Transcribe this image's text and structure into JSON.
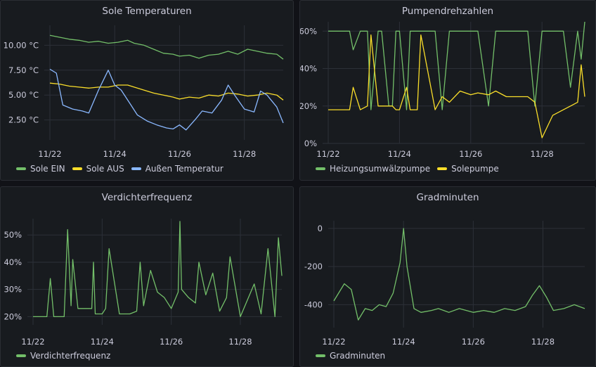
{
  "colors": {
    "green": "#73bf69",
    "yellow": "#fade2a",
    "blue": "#8ab8ff"
  },
  "chart_data": [
    {
      "type": "line",
      "title": "Sole Temperaturen",
      "x_ticks": [
        "11/22",
        "11/24",
        "11/26",
        "11/28"
      ],
      "y_ticks": [
        "10.00 °C",
        "7.50 °C",
        "5.00 °C",
        "2.50 °C"
      ],
      "ylim": [
        0.5,
        12
      ],
      "series": [
        {
          "name": "Sole EIN",
          "color": "#73bf69",
          "x": [
            0,
            0.3,
            0.6,
            0.9,
            1.2,
            1.5,
            1.8,
            2.1,
            2.4,
            2.6,
            2.9,
            3.2,
            3.5,
            3.8,
            4.0,
            4.3,
            4.6,
            4.9,
            5.2,
            5.5,
            5.8,
            6.1,
            6.4,
            6.7,
            7.0,
            7.2
          ],
          "y": [
            11.0,
            10.8,
            10.6,
            10.5,
            10.3,
            10.4,
            10.2,
            10.3,
            10.5,
            10.2,
            10.0,
            9.6,
            9.2,
            9.1,
            8.9,
            9.0,
            8.7,
            9.0,
            9.1,
            9.4,
            9.1,
            9.6,
            9.4,
            9.2,
            9.1,
            8.6
          ]
        },
        {
          "name": "Sole AUS",
          "color": "#fade2a",
          "x": [
            0,
            0.3,
            0.6,
            0.9,
            1.2,
            1.5,
            1.8,
            2.1,
            2.4,
            2.6,
            2.9,
            3.2,
            3.5,
            3.8,
            4.0,
            4.3,
            4.6,
            4.9,
            5.2,
            5.5,
            5.8,
            6.1,
            6.4,
            6.7,
            7.0,
            7.2
          ],
          "y": [
            6.2,
            6.1,
            5.9,
            5.8,
            5.7,
            5.8,
            5.8,
            6.0,
            6.0,
            5.8,
            5.5,
            5.2,
            5.0,
            4.8,
            4.6,
            4.8,
            4.7,
            5.0,
            4.9,
            5.2,
            5.1,
            4.9,
            5.0,
            5.2,
            5.0,
            4.5
          ]
        },
        {
          "name": "Außen Temperatur",
          "color": "#8ab8ff",
          "x": [
            0,
            0.2,
            0.4,
            0.7,
            1.0,
            1.2,
            1.5,
            1.8,
            2.0,
            2.2,
            2.5,
            2.7,
            3.0,
            3.3,
            3.6,
            3.8,
            4.0,
            4.2,
            4.5,
            4.7,
            5.0,
            5.3,
            5.5,
            5.7,
            6.0,
            6.3,
            6.5,
            6.7,
            7.0,
            7.2
          ],
          "y": [
            7.6,
            7.2,
            4.0,
            3.6,
            3.4,
            3.2,
            5.5,
            7.5,
            6.0,
            5.5,
            4.0,
            3.0,
            2.4,
            2.0,
            1.7,
            1.6,
            2.0,
            1.5,
            2.6,
            3.4,
            3.2,
            4.5,
            6.0,
            5.0,
            3.6,
            3.3,
            5.4,
            5.0,
            3.8,
            2.2
          ]
        }
      ],
      "legend_placement": "bottom-left"
    },
    {
      "type": "line",
      "title": "Pumpendrehzahlen",
      "x_ticks": [
        "11/22",
        "11/24",
        "11/26",
        "11/28"
      ],
      "y_ticks": [
        "60%",
        "40%",
        "20%",
        "0%"
      ],
      "ylim": [
        0,
        65
      ],
      "series": [
        {
          "name": "Heizungsumwälzpumpe",
          "color": "#73bf69",
          "x": [
            0,
            0.4,
            0.6,
            0.7,
            0.9,
            1.1,
            1.2,
            1.4,
            1.5,
            1.7,
            1.8,
            1.9,
            2.0,
            2.2,
            2.3,
            2.5,
            2.6,
            3.0,
            3.2,
            3.4,
            3.7,
            4.0,
            4.2,
            4.5,
            4.7,
            5.0,
            5.3,
            5.6,
            5.8,
            6.0,
            6.3,
            6.6,
            6.8,
            7.0,
            7.1,
            7.2
          ],
          "y": [
            60,
            60,
            60,
            50,
            60,
            60,
            18,
            60,
            60,
            20,
            20,
            60,
            60,
            18,
            60,
            60,
            60,
            60,
            18,
            60,
            60,
            60,
            60,
            20,
            60,
            60,
            60,
            60,
            20,
            60,
            60,
            60,
            30,
            60,
            45,
            65
          ]
        },
        {
          "name": "Solepumpe",
          "color": "#fade2a",
          "x": [
            0,
            0.4,
            0.6,
            0.7,
            0.9,
            1.1,
            1.2,
            1.4,
            1.5,
            1.7,
            1.8,
            1.9,
            2.0,
            2.2,
            2.3,
            2.5,
            2.6,
            3.0,
            3.2,
            3.4,
            3.7,
            4.0,
            4.2,
            4.5,
            4.7,
            5.0,
            5.3,
            5.6,
            5.8,
            6.0,
            6.3,
            6.6,
            6.8,
            7.0,
            7.1,
            7.2
          ],
          "y": [
            18,
            18,
            18,
            30,
            18,
            20,
            58,
            20,
            20,
            20,
            20,
            18,
            18,
            30,
            18,
            18,
            58,
            18,
            25,
            22,
            28,
            26,
            27,
            26,
            28,
            25,
            25,
            25,
            22,
            3,
            15,
            18,
            20,
            22,
            42,
            25
          ]
        }
      ],
      "legend_placement": "bottom-left"
    },
    {
      "type": "line",
      "title": "Verdichterfrequenz",
      "x_ticks": [
        "11/22",
        "11/24",
        "11/26",
        "11/28"
      ],
      "y_ticks": [
        "50%",
        "40%",
        "30%",
        "20%"
      ],
      "ylim": [
        17,
        56
      ],
      "series": [
        {
          "name": "Verdichterfrequenz",
          "color": "#73bf69",
          "x": [
            0,
            0.4,
            0.5,
            0.6,
            0.9,
            1.0,
            1.1,
            1.15,
            1.3,
            1.5,
            1.7,
            1.75,
            1.8,
            2.0,
            2.1,
            2.2,
            2.5,
            2.8,
            3.0,
            3.1,
            3.2,
            3.4,
            3.6,
            3.8,
            4.0,
            4.2,
            4.25,
            4.3,
            4.5,
            4.7,
            4.8,
            5.0,
            5.2,
            5.4,
            5.6,
            5.7,
            6.0,
            6.2,
            6.4,
            6.6,
            6.8,
            7.0,
            7.1,
            7.2
          ],
          "y": [
            20,
            20,
            34,
            20,
            20,
            52,
            24,
            41,
            23,
            23,
            23,
            40,
            21,
            21,
            23,
            45,
            21,
            21,
            22,
            40,
            24,
            37,
            29,
            27,
            23,
            29,
            55,
            30,
            27,
            25,
            40,
            28,
            36,
            22,
            27,
            42,
            20,
            26,
            32,
            21,
            45,
            20,
            49,
            35
          ]
        }
      ],
      "legend_placement": "bottom-left"
    },
    {
      "type": "line",
      "title": "Gradminuten",
      "x_ticks": [
        "11/22",
        "11/24",
        "11/26",
        "11/28"
      ],
      "y_ticks": [
        "0",
        "-200",
        "-400"
      ],
      "ylim": [
        -520,
        40
      ],
      "series": [
        {
          "name": "Gradminuten",
          "color": "#73bf69",
          "x": [
            0,
            0.3,
            0.5,
            0.7,
            0.9,
            1.1,
            1.3,
            1.5,
            1.7,
            1.9,
            2.0,
            2.1,
            2.3,
            2.5,
            2.8,
            3.0,
            3.3,
            3.6,
            4.0,
            4.3,
            4.6,
            4.9,
            5.2,
            5.5,
            5.7,
            5.9,
            6.1,
            6.3,
            6.6,
            6.9,
            7.2
          ],
          "y": [
            -380,
            -290,
            -320,
            -480,
            -420,
            -430,
            -400,
            -410,
            -340,
            -180,
            0,
            -200,
            -420,
            -440,
            -430,
            -420,
            -440,
            -420,
            -440,
            -430,
            -440,
            -420,
            -430,
            -410,
            -350,
            -300,
            -360,
            -430,
            -420,
            -400,
            -420
          ]
        }
      ],
      "legend_placement": "bottom-left"
    }
  ]
}
